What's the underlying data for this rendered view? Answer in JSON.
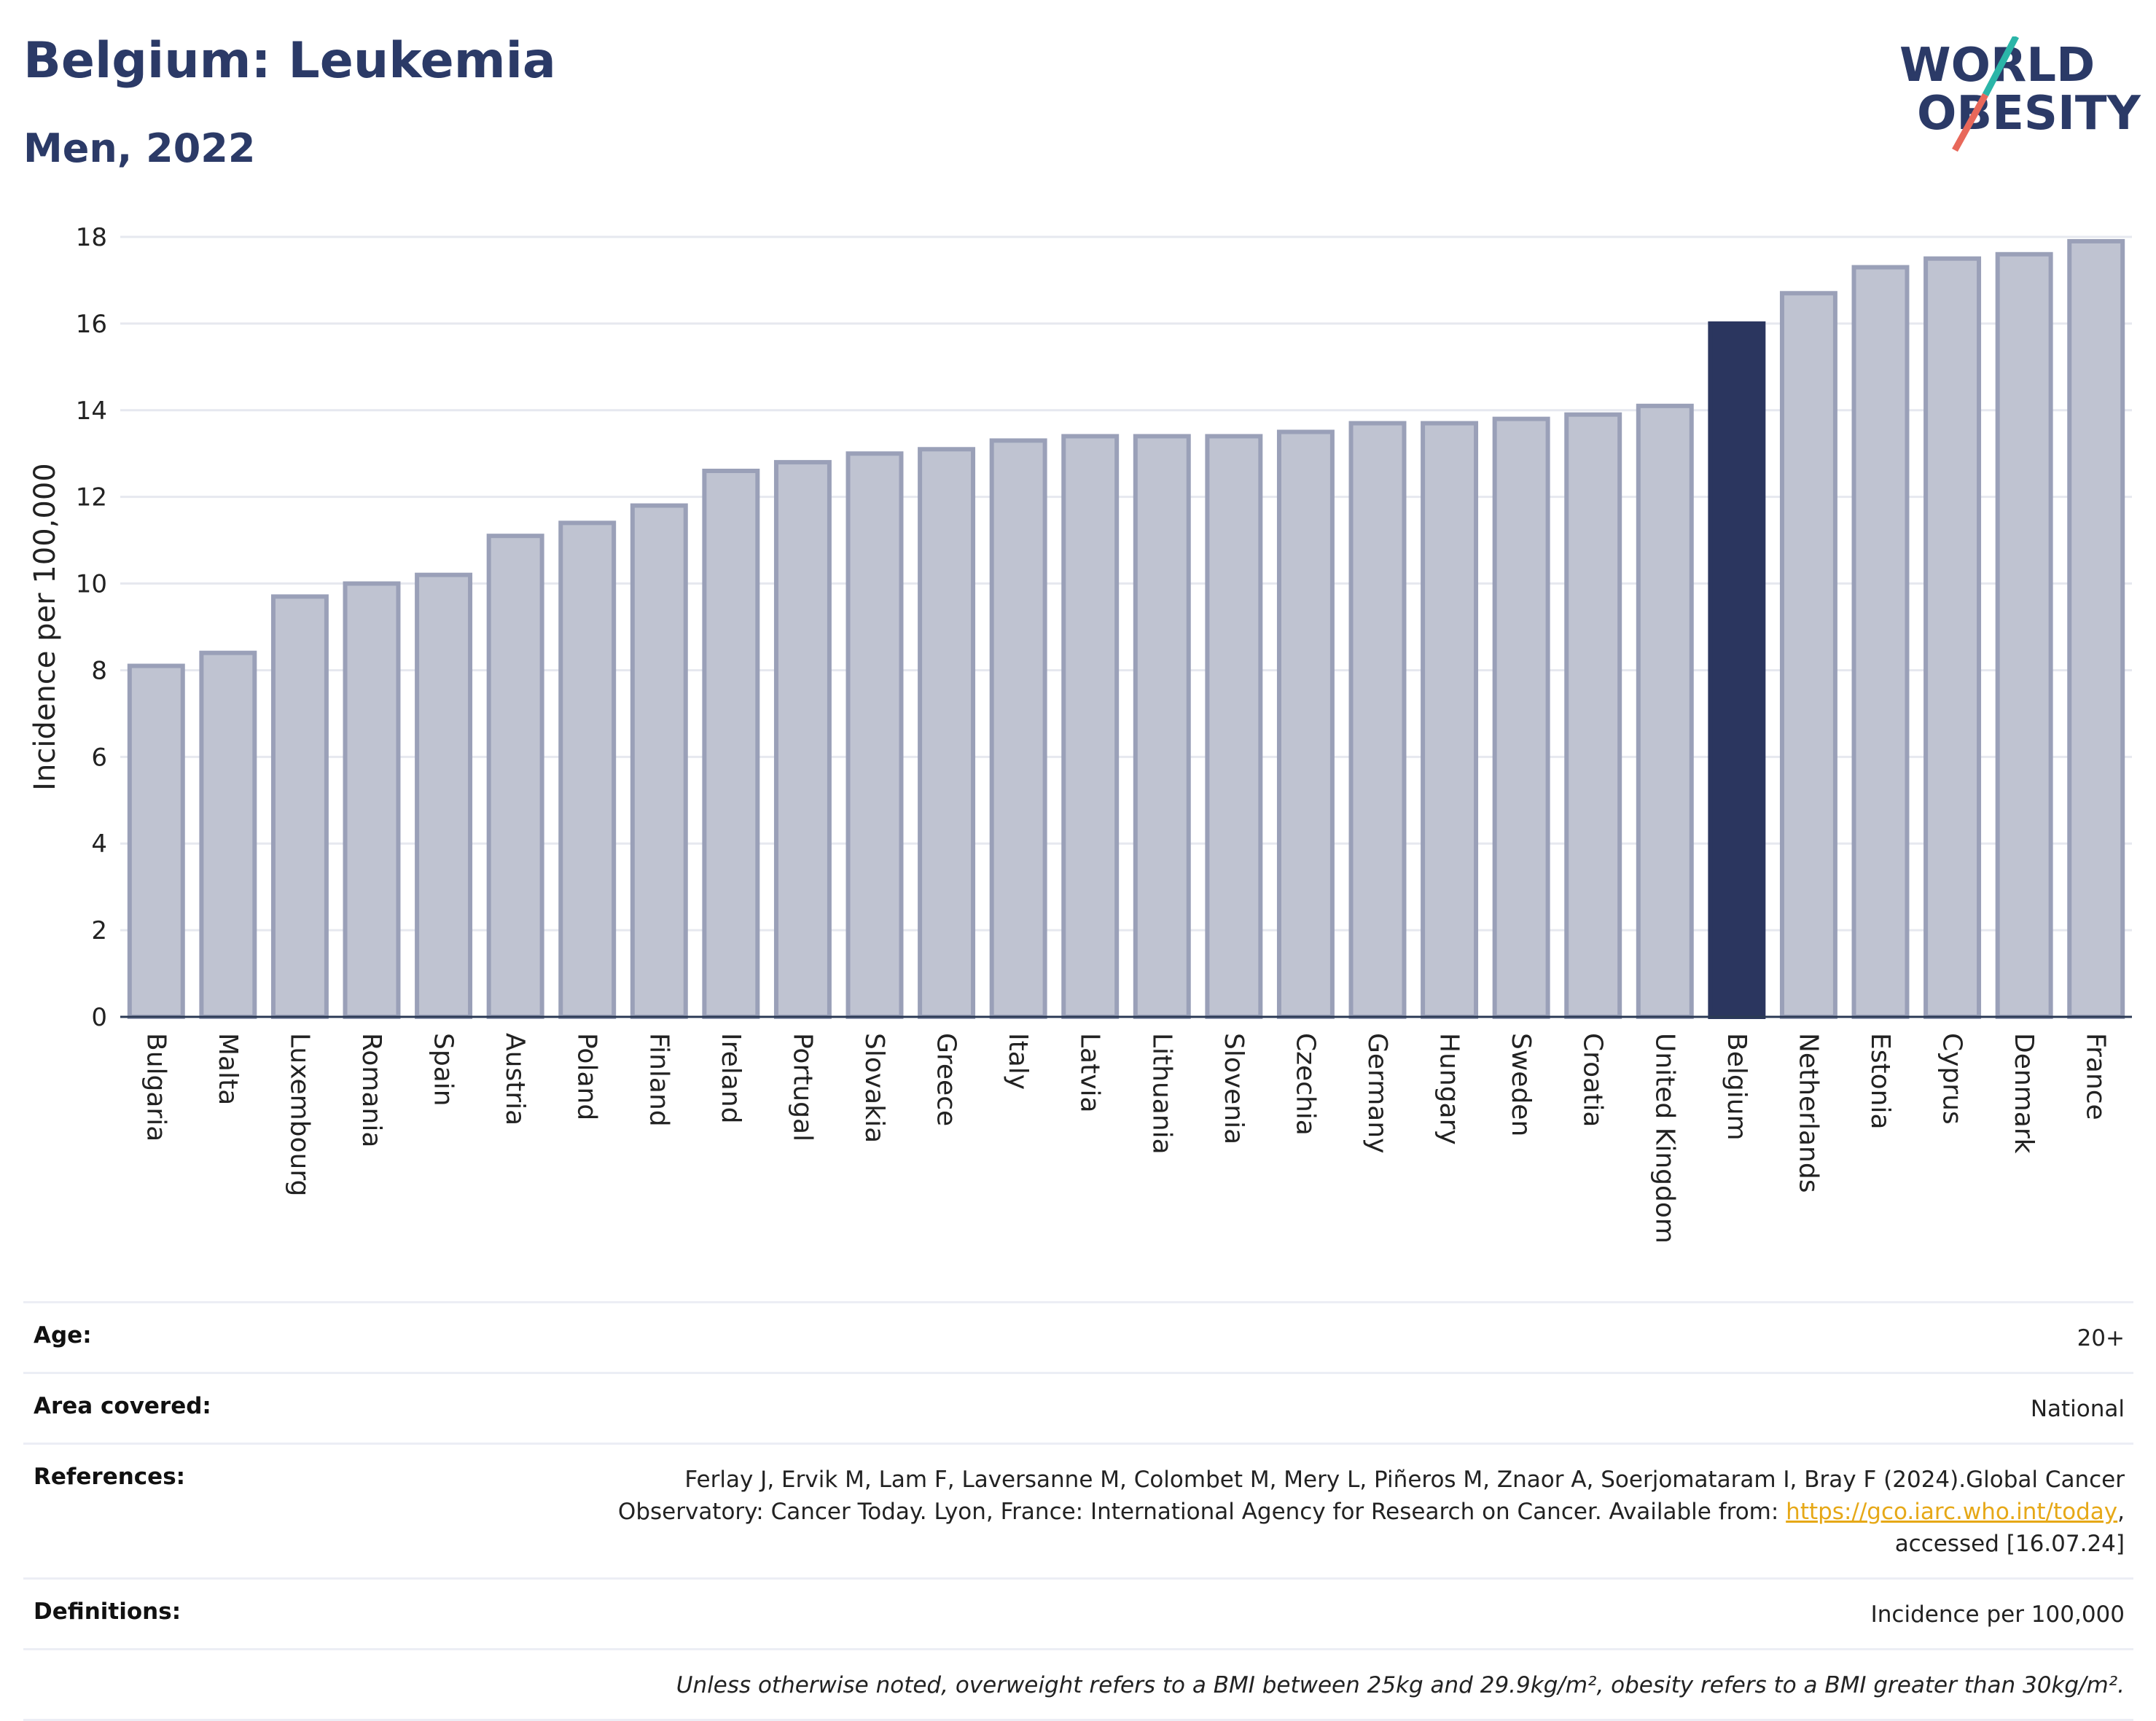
{
  "header": {
    "title": "Belgium: Leukemia",
    "subtitle": "Men, 2022",
    "logo_line1": "WORLD",
    "logo_line2": "OBESITY"
  },
  "colors": {
    "highlight": "#2b365f",
    "bar_fill": "#bfc3d1",
    "bar_stroke": "#9aa0b8",
    "title": "#2b3a67",
    "logo_teal": "#2bb5a8",
    "logo_coral": "#e8685a"
  },
  "chart_data": {
    "type": "bar",
    "title": "Belgium: Leukemia",
    "subtitle": "Men, 2022",
    "ylabel": "Incidence per 100,000",
    "ylim": [
      0,
      18
    ],
    "yticks": [
      0,
      2,
      4,
      6,
      8,
      10,
      12,
      14,
      16,
      18
    ],
    "grid": true,
    "highlight": "Belgium",
    "categories": [
      "Bulgaria",
      "Malta",
      "Luxembourg",
      "Romania",
      "Spain",
      "Austria",
      "Poland",
      "Finland",
      "Ireland",
      "Portugal",
      "Slovakia",
      "Greece",
      "Italy",
      "Latvia",
      "Lithuania",
      "Slovenia",
      "Czechia",
      "Germany",
      "Hungary",
      "Sweden",
      "Croatia",
      "United Kingdom",
      "Belgium",
      "Netherlands",
      "Estonia",
      "Cyprus",
      "Denmark",
      "France"
    ],
    "values": [
      8.1,
      8.4,
      9.7,
      10.0,
      10.2,
      11.1,
      11.4,
      11.8,
      12.6,
      12.8,
      13.0,
      13.1,
      13.3,
      13.4,
      13.4,
      13.4,
      13.5,
      13.7,
      13.7,
      13.8,
      13.9,
      14.1,
      16.0,
      16.7,
      17.3,
      17.5,
      17.6,
      17.9
    ]
  },
  "info": {
    "age_label": "Age:",
    "age_value": "20+",
    "area_label": "Area covered:",
    "area_value": "National",
    "references_label": "References:",
    "references_text_1": "Ferlay J, Ervik M, Lam F, Laversanne M, Colombet M, Mery L, Piñeros M, Znaor A, Soerjomataram I, Bray F (2024).Global Cancer",
    "references_text_2": "Observatory: Cancer Today. Lyon, France: International Agency for Research on Cancer. Available from: ",
    "references_link": "https://gco.iarc.who.int/today",
    "references_text_3": ",",
    "references_text_4": "accessed [16.07.24]",
    "definitions_label": "Definitions:",
    "definitions_value": "Incidence per 100,000",
    "note": "Unless otherwise noted, overweight refers to a BMI between 25kg and 29.9kg/m², obesity refers to a BMI greater than 30kg/m²."
  }
}
